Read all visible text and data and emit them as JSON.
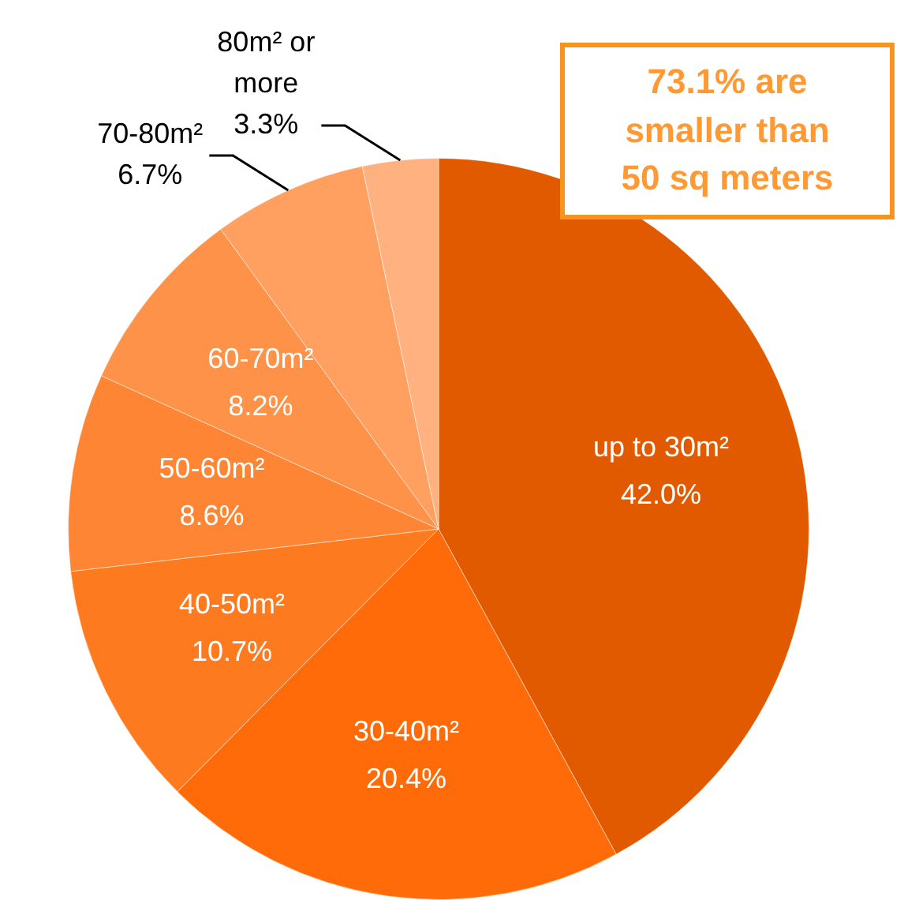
{
  "chart_data": {
    "type": "pie",
    "categories": [
      "up to 30m²",
      "30-40m²",
      "40-50m²",
      "50-60m²",
      "60-70m²",
      "70-80m²",
      "80m² or more"
    ],
    "values": [
      42.0,
      20.4,
      10.7,
      8.6,
      8.2,
      6.7,
      3.3
    ],
    "colors": [
      "#e25a00",
      "#ff6b08",
      "#fd7a1f",
      "#fd8533",
      "#fe9249",
      "#ffa060",
      "#ffb27f"
    ],
    "value_labels": [
      "42.0%",
      "20.4%",
      "10.7%",
      "8.6%",
      "8.2%",
      "6.7%",
      "3.3%"
    ],
    "legend": false,
    "annotations": [
      "73.1% are smaller than 50 sq meters"
    ]
  }
}
